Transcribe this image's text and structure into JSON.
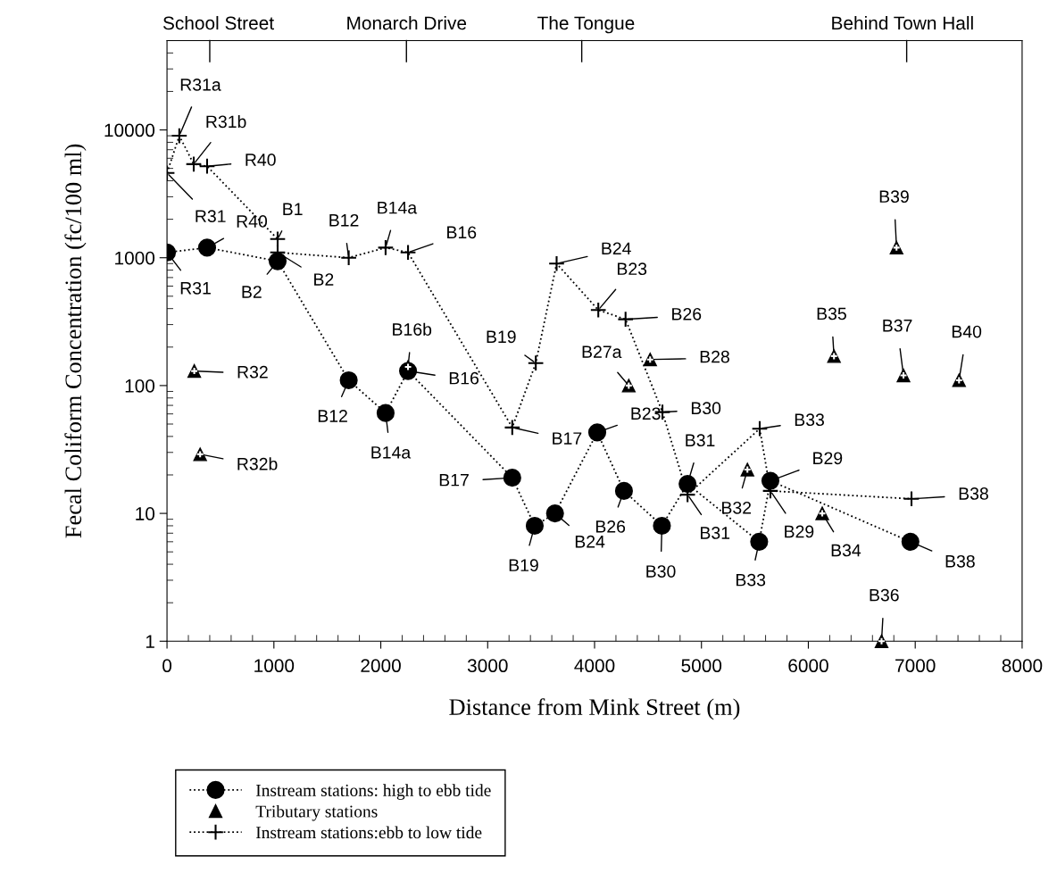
{
  "chart_data": {
    "type": "line",
    "xlabel": "Distance from Mink Street (m)",
    "ylabel": "Fecal Coliform Concentration (fc/100 ml)",
    "xlim": [
      0,
      8000
    ],
    "xticks": [
      0,
      1000,
      2000,
      3000,
      4000,
      5000,
      6000,
      7000,
      8000
    ],
    "ylim": [
      1,
      50000
    ],
    "yticks": [
      1,
      10,
      100,
      1000,
      10000
    ],
    "log": "y",
    "grid": false,
    "legend": "bottom left",
    "series": [
      {
        "name": "Instream stations: high to ebb tide",
        "color": "#000000",
        "marker": "circle",
        "line_style": "dotted",
        "x": [
          0,
          375,
          1035,
          1700,
          2045,
          2255,
          3230,
          3440,
          3630,
          4025,
          4275,
          4630,
          4870,
          5540,
          5645,
          6955
        ],
        "values": [
          1100,
          1200,
          940,
          110,
          61,
          130,
          19,
          8,
          10,
          43,
          15,
          8,
          17,
          6,
          18,
          6
        ]
      },
      {
        "name": "Tributary stations",
        "type": "scatter",
        "color": "#000000",
        "marker": "triangle",
        "x": [
          255,
          310,
          2255,
          4320,
          4520,
          5430,
          6130,
          6685,
          6240,
          6890,
          7410,
          6825
        ],
        "values": [
          130,
          29,
          140,
          100,
          160,
          22,
          10,
          1,
          170,
          120,
          110,
          1200
        ]
      },
      {
        "name": "Instream stations:ebb to low tide",
        "color": "#000000",
        "marker": "cross",
        "line_style": "dotted",
        "x": [
          0,
          115,
          250,
          375,
          1035,
          1035,
          1700,
          2045,
          2255,
          3230,
          3450,
          3645,
          4035,
          4290,
          4635,
          4870,
          5545,
          5645,
          6965
        ],
        "values": [
          4600,
          9000,
          5400,
          5200,
          1400,
          1100,
          1000,
          1200,
          1100,
          47,
          150,
          900,
          390,
          330,
          62,
          14,
          46,
          15,
          13
        ]
      }
    ],
    "annotations": [
      "School Street",
      "Monarch Drive",
      "The Tongue",
      "Behind Town Hall",
      {
        "text": "R31",
        "x": 0,
        "y": 1100
      },
      {
        "text": "R40",
        "x": 375,
        "y": 1200
      },
      {
        "text": "B2",
        "x": 1035,
        "y": 940
      },
      {
        "text": "B12",
        "x": 1700,
        "y": 110
      },
      {
        "text": "B14a",
        "x": 2045,
        "y": 61
      },
      {
        "text": "B16",
        "x": 2255,
        "y": 130
      },
      {
        "text": "B17",
        "x": 3230,
        "y": 19
      },
      {
        "text": "B19",
        "x": 3440,
        "y": 8
      },
      {
        "text": "B24",
        "x": 3630,
        "y": 10
      },
      {
        "text": "B23",
        "x": 4025,
        "y": 43
      },
      {
        "text": "B26",
        "x": 4275,
        "y": 15
      },
      {
        "text": "B30",
        "x": 4630,
        "y": 8
      },
      {
        "text": "B31",
        "x": 4870,
        "y": 17
      },
      {
        "text": "B33",
        "x": 5540,
        "y": 6
      },
      {
        "text": "B29",
        "x": 5645,
        "y": 18
      },
      {
        "text": "B38",
        "x": 6955,
        "y": 6
      },
      {
        "text": "R32",
        "x": 255,
        "y": 130
      },
      {
        "text": "R32b",
        "x": 310,
        "y": 29
      },
      {
        "text": "B16b",
        "x": 2255,
        "y": 140
      },
      {
        "text": "B27a",
        "x": 4320,
        "y": 100
      },
      {
        "text": "B28",
        "x": 4520,
        "y": 160
      },
      {
        "text": "B32",
        "x": 5430,
        "y": 22
      },
      {
        "text": "B34",
        "x": 6130,
        "y": 10
      },
      {
        "text": "B36",
        "x": 6685,
        "y": 1
      },
      {
        "text": "B35",
        "x": 6240,
        "y": 170
      },
      {
        "text": "B37",
        "x": 6890,
        "y": 120
      },
      {
        "text": "B40",
        "x": 7410,
        "y": 110
      },
      {
        "text": "B39",
        "x": 6825,
        "y": 1200
      },
      {
        "text": "R31",
        "x": 0,
        "y": 4600
      },
      {
        "text": "R31a",
        "x": 115,
        "y": 9000
      },
      {
        "text": "R31b",
        "x": 250,
        "y": 5400
      },
      {
        "text": "R40",
        "x": 375,
        "y": 5200
      },
      {
        "text": "B1",
        "x": 1035,
        "y": 1400
      },
      {
        "text": "B2",
        "x": 1035,
        "y": 1100
      },
      {
        "text": "B12",
        "x": 1700,
        "y": 1000
      },
      {
        "text": "B14a",
        "x": 2045,
        "y": 1200
      },
      {
        "text": "B16",
        "x": 2255,
        "y": 1100
      },
      {
        "text": "B17",
        "x": 3230,
        "y": 47
      },
      {
        "text": "B19",
        "x": 3450,
        "y": 150
      },
      {
        "text": "B24",
        "x": 3645,
        "y": 900
      },
      {
        "text": "B23",
        "x": 4035,
        "y": 390
      },
      {
        "text": "B26",
        "x": 4290,
        "y": 330
      },
      {
        "text": "B30",
        "x": 4635,
        "y": 62
      },
      {
        "text": "B31",
        "x": 4870,
        "y": 14
      },
      {
        "text": "B33",
        "x": 5545,
        "y": 46
      },
      {
        "text": "B29",
        "x": 5645,
        "y": 15
      },
      {
        "text": "B38",
        "x": 6965,
        "y": 13
      }
    ]
  }
}
